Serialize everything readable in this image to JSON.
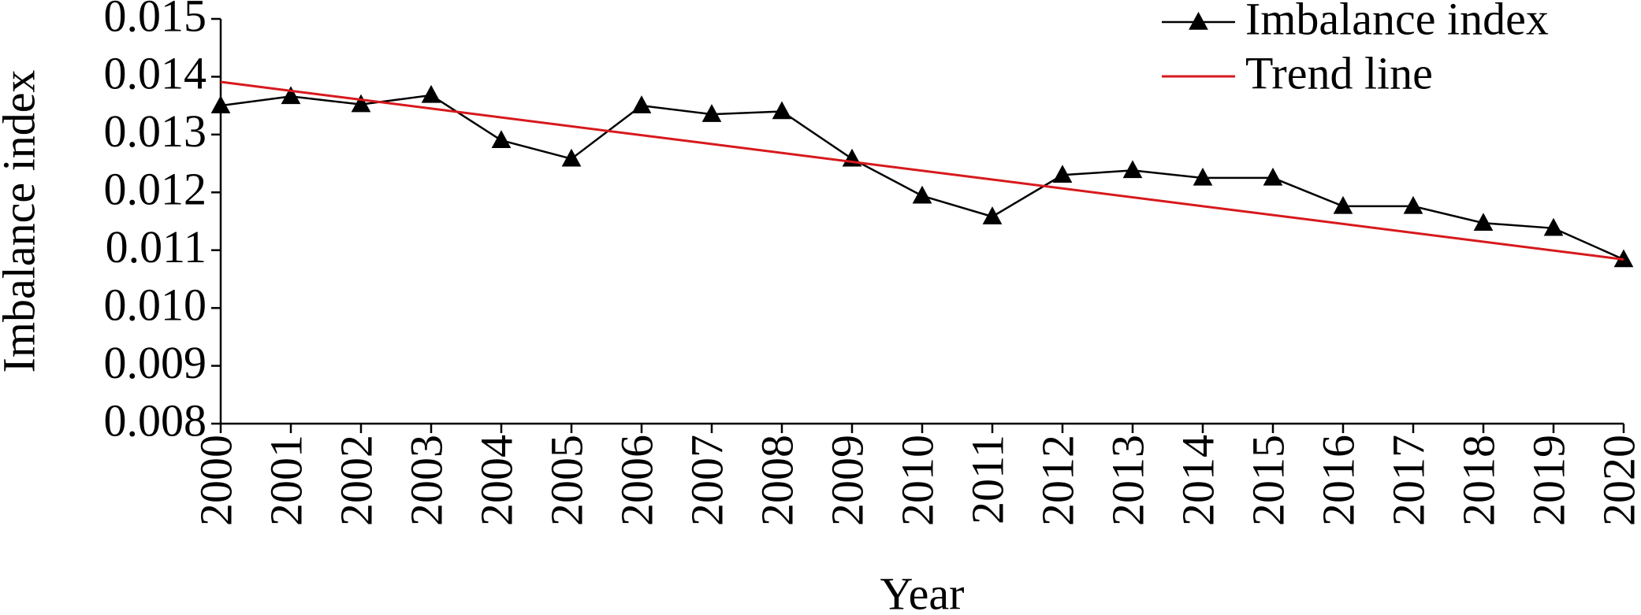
{
  "chart_data": {
    "type": "line",
    "ylabel": "Imbalance index",
    "xlabel": "Year",
    "xlim": [
      2000,
      2020
    ],
    "xticks": [
      2000,
      2001,
      2002,
      2003,
      2004,
      2005,
      2006,
      2007,
      2008,
      2009,
      2010,
      2011,
      2012,
      2013,
      2014,
      2015,
      2016,
      2017,
      2018,
      2019,
      2020
    ],
    "ylim": [
      0.008,
      0.015
    ],
    "yticks": [
      {
        "value": 0.008,
        "label": "0.008"
      },
      {
        "value": 0.009,
        "label": "0.009"
      },
      {
        "value": 0.01,
        "label": "0.010"
      },
      {
        "value": 0.011,
        "label": "0.011"
      },
      {
        "value": 0.012,
        "label": "0.012"
      },
      {
        "value": 0.013,
        "label": "0.013"
      },
      {
        "value": 0.014,
        "label": "0.014"
      },
      0.015
    ],
    "legend": "upper right",
    "series": [
      {
        "name": "Imbalance index",
        "color": "#000000",
        "marker": "triangle",
        "x": [
          2000,
          2001,
          2002,
          2003,
          2004,
          2005,
          2006,
          2007,
          2008,
          2009,
          2010,
          2011,
          2012,
          2013,
          2014,
          2015,
          2016,
          2017,
          2018,
          2019,
          2020
        ],
        "values": [
          0.0135,
          0.01366,
          0.01352,
          0.01368,
          0.0129,
          0.01258,
          0.0135,
          0.01335,
          0.0134,
          0.01258,
          0.01194,
          0.01158,
          0.0123,
          0.01238,
          0.01225,
          0.01225,
          0.01176,
          0.01176,
          0.01147,
          0.01138,
          0.01084
        ]
      },
      {
        "name": "Trend line",
        "color": "#d7191c",
        "x": [
          2000,
          2020
        ],
        "values": [
          0.01391,
          0.01084
        ]
      }
    ]
  }
}
